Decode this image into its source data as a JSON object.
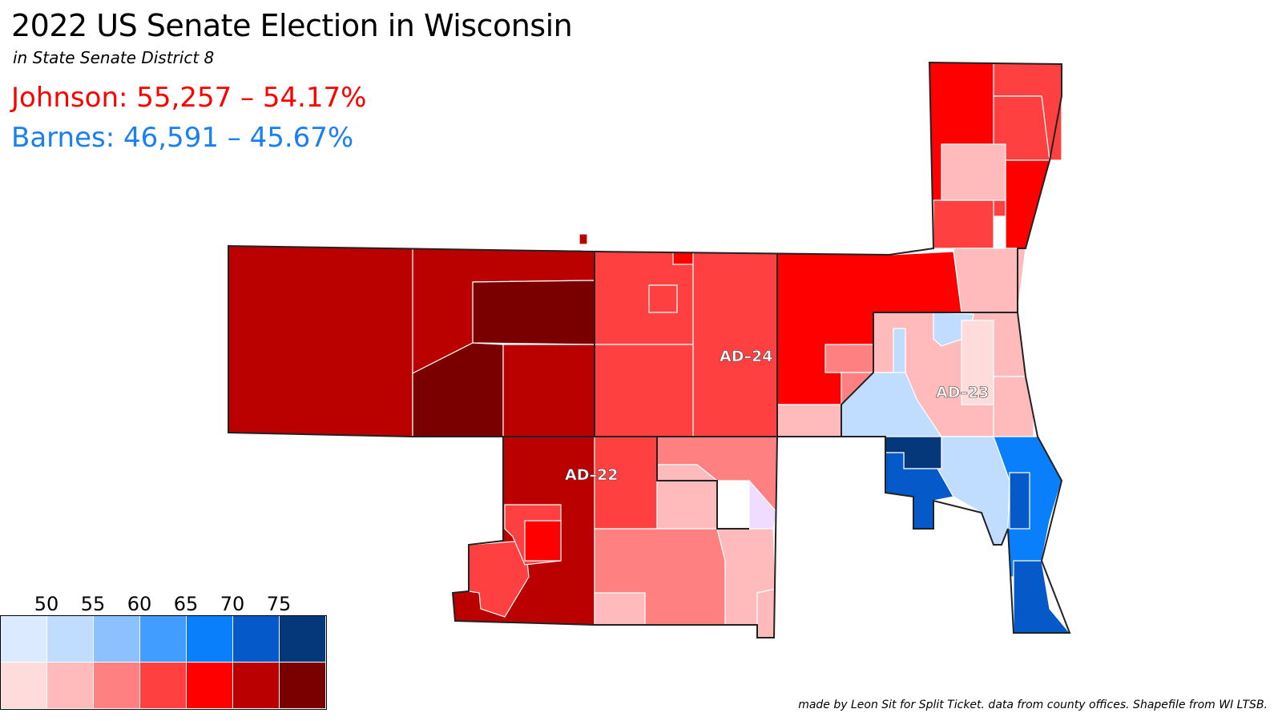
{
  "title": "2022 US Senate Election in Wisconsin",
  "subtitle": "in State Senate District 8",
  "results": {
    "rep": {
      "text": "Johnson: 55,257 – 54.17%",
      "color": "#ff0000"
    },
    "dem": {
      "text": "Barnes: 46,591 – 45.67%",
      "color": "#1a7ff0"
    }
  },
  "districts": [
    {
      "label": "AD–24"
    },
    {
      "label": "AD–23"
    },
    {
      "label": "AD–22"
    }
  ],
  "legend": {
    "ticks": [
      "50",
      "55",
      "60",
      "65",
      "70",
      "75"
    ],
    "dem_colors": [
      "#dbeaff",
      "#c0dcff",
      "#8cc1ff",
      "#419dff",
      "#0a7ffc",
      "#0659c9",
      "#05387a"
    ],
    "rep_colors": [
      "#ffdcdc",
      "#ffbbbb",
      "#ff8080",
      "#ff4040",
      "#ff0000",
      "#bb0000",
      "#7a0000"
    ]
  },
  "credit": "made by Leon Sit for Split Ticket. data from county offices. Shapefile from WI LTSB."
}
